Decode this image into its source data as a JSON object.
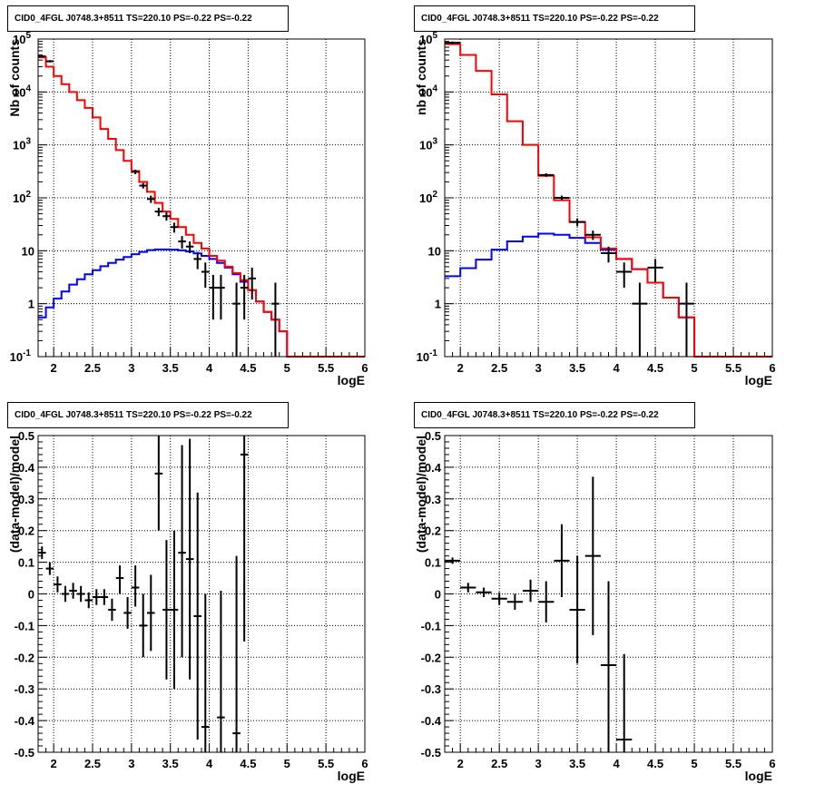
{
  "panel_title": "CID0_4FGL J0748.3+8511 TS=220.10 PS=-0.22 PS=-0.22",
  "colors": {
    "data": "#000000",
    "total_model": "#ff0000",
    "source_model": "#0000ff",
    "grid": "#000000"
  },
  "chart_data": [
    {
      "type": "histogram",
      "title": "CID0_4FGL J0748.3+8511 TS=220.10 PS=-0.22 PS=-0.22",
      "xlabel": "logE",
      "ylabel": "Nb of counts",
      "log_y": true,
      "grid": true,
      "xlim": [
        1.8,
        6.0
      ],
      "ylim": [
        0.1,
        100000
      ],
      "x_ticks": [
        "2",
        "2.5",
        "3",
        "3.5",
        "4",
        "4.5",
        "5",
        "5.5",
        "6"
      ],
      "y_ticks": [
        "10^-1",
        "1",
        "10",
        "10^2",
        "10^3",
        "10^4",
        "10^5"
      ],
      "bin_edges": [
        1.8,
        1.9,
        2.0,
        2.1,
        2.2,
        2.3,
        2.4,
        2.5,
        2.6,
        2.7,
        2.8,
        2.9,
        3.0,
        3.1,
        3.2,
        3.3,
        3.4,
        3.5,
        3.6,
        3.7,
        3.8,
        3.9,
        4.0,
        4.1,
        4.2,
        4.3,
        4.4,
        4.5,
        4.6,
        4.7,
        4.8,
        4.9,
        5.0,
        5.1,
        5.2,
        5.3,
        5.4,
        5.5,
        5.6,
        5.7,
        5.8,
        5.9,
        6.0
      ],
      "series": [
        {
          "values": [
            45000,
            30000,
            20000,
            14000,
            10000,
            7000,
            5000,
            3300,
            2000,
            1300,
            800,
            500,
            320,
            200,
            130,
            80,
            55,
            40,
            28,
            20,
            14,
            11,
            8,
            6.5,
            5,
            3.8,
            2.8,
            1.8,
            1.1,
            0.7,
            0.5,
            0.3,
            0.1,
            0.1,
            0.1,
            0.1,
            0.1,
            0.1,
            0.1,
            0.1,
            0.1,
            0.1
          ]
        },
        {
          "values": [
            0.55,
            0.85,
            1.25,
            1.7,
            2.3,
            2.9,
            3.6,
            4.3,
            5.1,
            5.9,
            6.8,
            7.6,
            8.6,
            9.5,
            10.3,
            10.6,
            10.6,
            10.5,
            10.2,
            9.7,
            8.9,
            8.0,
            7.0,
            5.9,
            4.8,
            3.6,
            2.6,
            1.8,
            1.1,
            0.7,
            0.5,
            0.3,
            0.1,
            0.1,
            0.1,
            0.1,
            0.1,
            0.1,
            0.1,
            0.1,
            0.1,
            0.1
          ]
        }
      ],
      "points": [
        {
          "x": 1.85,
          "y": 47000,
          "lo": 45000,
          "hi": 49000
        },
        {
          "x": 1.95,
          "y": 38000,
          "lo": 36000,
          "hi": 40000
        },
        {
          "x": 3.05,
          "y": 310,
          "lo": 280,
          "hi": 340
        },
        {
          "x": 3.15,
          "y": 170,
          "lo": 150,
          "hi": 190
        },
        {
          "x": 3.25,
          "y": 95,
          "lo": 80,
          "hi": 110
        },
        {
          "x": 3.35,
          "y": 55,
          "lo": 45,
          "hi": 65
        },
        {
          "x": 3.45,
          "y": 45,
          "lo": 37,
          "hi": 54
        },
        {
          "x": 3.55,
          "y": 28,
          "lo": 22,
          "hi": 34
        },
        {
          "x": 3.65,
          "y": 15,
          "lo": 11,
          "hi": 19
        },
        {
          "x": 3.75,
          "y": 12,
          "lo": 9,
          "hi": 15
        },
        {
          "x": 3.85,
          "y": 7,
          "lo": 4.5,
          "hi": 9.5
        },
        {
          "x": 3.95,
          "y": 4,
          "lo": 2,
          "hi": 6
        },
        {
          "x": 4.05,
          "y": 2,
          "lo": 0.5,
          "hi": 3.5
        },
        {
          "x": 4.15,
          "y": 2,
          "lo": 0.5,
          "hi": 3.5
        },
        {
          "x": 4.35,
          "y": 1,
          "lo": 0.1,
          "hi": 2.5
        },
        {
          "x": 4.45,
          "y": 2,
          "lo": 0.5,
          "hi": 3.5
        },
        {
          "x": 4.55,
          "y": 3,
          "lo": 1.2,
          "hi": 4.8
        },
        {
          "x": 4.85,
          "y": 1,
          "lo": 0.1,
          "hi": 2.5
        }
      ]
    },
    {
      "type": "histogram",
      "title": "CID0_4FGL J0748.3+8511 TS=220.10 PS=-0.22 PS=-0.22",
      "xlabel": "logE",
      "ylabel": "nb of counts",
      "log_y": true,
      "grid": true,
      "xlim": [
        1.8,
        6.0
      ],
      "ylim": [
        0.1,
        100000
      ],
      "x_ticks": [
        "2",
        "2.5",
        "3",
        "3.5",
        "4",
        "4.5",
        "5",
        "5.5",
        "6"
      ],
      "y_ticks": [
        "10^-1",
        "1",
        "10",
        "10^2",
        "10^3",
        "10^4",
        "10^5"
      ],
      "bin_edges": [
        1.8,
        2.0,
        2.2,
        2.4,
        2.6,
        2.8,
        3.0,
        3.2,
        3.4,
        3.6,
        3.8,
        4.0,
        4.2,
        4.4,
        4.6,
        4.8,
        5.0,
        5.2,
        5.4,
        5.6,
        5.8,
        6.0
      ],
      "series": [
        {
          "values": [
            80000,
            50000,
            25000,
            9000,
            2800,
            1000,
            260,
            90,
            35,
            18,
            11,
            7,
            4.5,
            2.5,
            1.3,
            0.55,
            0.1,
            0.1,
            0.1,
            0.1,
            0.1
          ]
        },
        {
          "values": [
            3.3,
            4.7,
            6.8,
            10.5,
            15,
            18.5,
            21,
            20,
            17.5,
            14,
            10.5,
            7,
            4.5,
            2.5,
            1.3,
            0.55,
            0.1,
            0.1,
            0.1,
            0.1,
            0.1
          ]
        }
      ],
      "points": [
        {
          "x": 1.9,
          "y": 85000,
          "lo": 80000,
          "hi": 90000
        },
        {
          "x": 3.1,
          "y": 270,
          "lo": 250,
          "hi": 290
        },
        {
          "x": 3.3,
          "y": 100,
          "lo": 90,
          "hi": 110
        },
        {
          "x": 3.5,
          "y": 35,
          "lo": 29,
          "hi": 41
        },
        {
          "x": 3.7,
          "y": 20,
          "lo": 16,
          "hi": 24
        },
        {
          "x": 3.9,
          "y": 9,
          "lo": 6,
          "hi": 12
        },
        {
          "x": 4.1,
          "y": 4,
          "lo": 2,
          "hi": 6
        },
        {
          "x": 4.3,
          "y": 1,
          "lo": 0.1,
          "hi": 2.5
        },
        {
          "x": 4.5,
          "y": 4.8,
          "lo": 2.6,
          "hi": 7
        },
        {
          "x": 4.9,
          "y": 1,
          "lo": 0.1,
          "hi": 2.5
        }
      ]
    },
    {
      "type": "scatter",
      "title": "CID0_4FGL J0748.3+8511 TS=220.10 PS=-0.22 PS=-0.22",
      "xlabel": "logE",
      "ylabel": "(data-model)/model",
      "grid": true,
      "xlim": [
        1.8,
        6.0
      ],
      "ylim": [
        -0.5,
        0.5
      ],
      "x_ticks": [
        "2",
        "2.5",
        "3",
        "3.5",
        "4",
        "4.5",
        "5",
        "5.5",
        "6"
      ],
      "y_ticks": [
        "-0.5",
        "-0.4",
        "-0.3",
        "-0.2",
        "-0.1",
        "0",
        "0.1",
        "0.2",
        "0.3",
        "0.4",
        "0.5"
      ],
      "bin_width": 0.1,
      "points": [
        {
          "x": 1.85,
          "y": 0.13,
          "lo": 0.11,
          "hi": 0.15
        },
        {
          "x": 1.95,
          "y": 0.08,
          "lo": 0.06,
          "hi": 0.1
        },
        {
          "x": 2.05,
          "y": 0.03,
          "lo": 0.005,
          "hi": 0.055
        },
        {
          "x": 2.15,
          "y": 0.0,
          "lo": -0.025,
          "hi": 0.025
        },
        {
          "x": 2.25,
          "y": 0.01,
          "lo": -0.015,
          "hi": 0.035
        },
        {
          "x": 2.35,
          "y": 0.0,
          "lo": -0.025,
          "hi": 0.025
        },
        {
          "x": 2.45,
          "y": -0.02,
          "lo": -0.045,
          "hi": 0.005
        },
        {
          "x": 2.55,
          "y": -0.01,
          "lo": -0.035,
          "hi": 0.015
        },
        {
          "x": 2.65,
          "y": -0.01,
          "lo": -0.035,
          "hi": 0.015
        },
        {
          "x": 2.75,
          "y": -0.05,
          "lo": -0.085,
          "hi": -0.015
        },
        {
          "x": 2.85,
          "y": 0.05,
          "lo": 0.0,
          "hi": 0.09
        },
        {
          "x": 2.95,
          "y": -0.06,
          "lo": -0.11,
          "hi": -0.01
        },
        {
          "x": 3.05,
          "y": 0.02,
          "lo": -0.04,
          "hi": 0.09
        },
        {
          "x": 3.15,
          "y": -0.1,
          "lo": -0.2,
          "hi": 0.0
        },
        {
          "x": 3.25,
          "y": -0.06,
          "lo": -0.18,
          "hi": 0.06
        },
        {
          "x": 3.35,
          "y": 0.38,
          "lo": 0.2,
          "hi": 0.5
        },
        {
          "x": 3.45,
          "y": -0.05,
          "lo": -0.27,
          "hi": 0.17
        },
        {
          "x": 3.55,
          "y": -0.05,
          "lo": -0.3,
          "hi": 0.2
        },
        {
          "x": 3.65,
          "y": 0.13,
          "lo": -0.2,
          "hi": 0.47
        },
        {
          "x": 3.75,
          "y": 0.11,
          "lo": -0.27,
          "hi": 0.49
        },
        {
          "x": 3.85,
          "y": -0.07,
          "lo": -0.46,
          "hi": 0.32
        },
        {
          "x": 3.95,
          "y": -0.42,
          "lo": -0.5,
          "hi": 0.0
        },
        {
          "x": 4.15,
          "y": -0.39,
          "lo": -0.5,
          "hi": 0.01
        },
        {
          "x": 4.35,
          "y": -0.44,
          "lo": -0.5,
          "hi": 0.12
        },
        {
          "x": 4.45,
          "y": 0.44,
          "lo": -0.15,
          "hi": 0.5
        }
      ]
    },
    {
      "type": "scatter",
      "title": "CID0_4FGL J0748.3+8511 TS=220.10 PS=-0.22 PS=-0.22",
      "xlabel": "logE",
      "ylabel": "(data-model)/model",
      "grid": true,
      "xlim": [
        1.8,
        6.0
      ],
      "ylim": [
        -0.5,
        0.5
      ],
      "x_ticks": [
        "2",
        "2.5",
        "3",
        "3.5",
        "4",
        "4.5",
        "5",
        "5.5",
        "6"
      ],
      "y_ticks": [
        "-0.5",
        "-0.4",
        "-0.3",
        "-0.2",
        "-0.1",
        "0",
        "0.1",
        "0.2",
        "0.3",
        "0.4",
        "0.5"
      ],
      "bin_width": 0.2,
      "points": [
        {
          "x": 1.9,
          "y": 0.105,
          "lo": 0.095,
          "hi": 0.115
        },
        {
          "x": 2.1,
          "y": 0.02,
          "lo": 0.005,
          "hi": 0.035
        },
        {
          "x": 2.3,
          "y": 0.005,
          "lo": -0.01,
          "hi": 0.02
        },
        {
          "x": 2.5,
          "y": -0.015,
          "lo": -0.035,
          "hi": 0.005
        },
        {
          "x": 2.7,
          "y": -0.025,
          "lo": -0.05,
          "hi": 0.0
        },
        {
          "x": 2.9,
          "y": 0.01,
          "lo": -0.025,
          "hi": 0.045
        },
        {
          "x": 3.1,
          "y": -0.025,
          "lo": -0.09,
          "hi": 0.04
        },
        {
          "x": 3.3,
          "y": 0.105,
          "lo": -0.01,
          "hi": 0.22
        },
        {
          "x": 3.5,
          "y": -0.05,
          "lo": -0.22,
          "hi": 0.12
        },
        {
          "x": 3.7,
          "y": 0.12,
          "lo": -0.13,
          "hi": 0.37
        },
        {
          "x": 3.9,
          "y": -0.225,
          "lo": -0.5,
          "hi": 0.04
        },
        {
          "x": 4.1,
          "y": -0.46,
          "lo": -0.5,
          "hi": -0.19
        }
      ]
    }
  ]
}
